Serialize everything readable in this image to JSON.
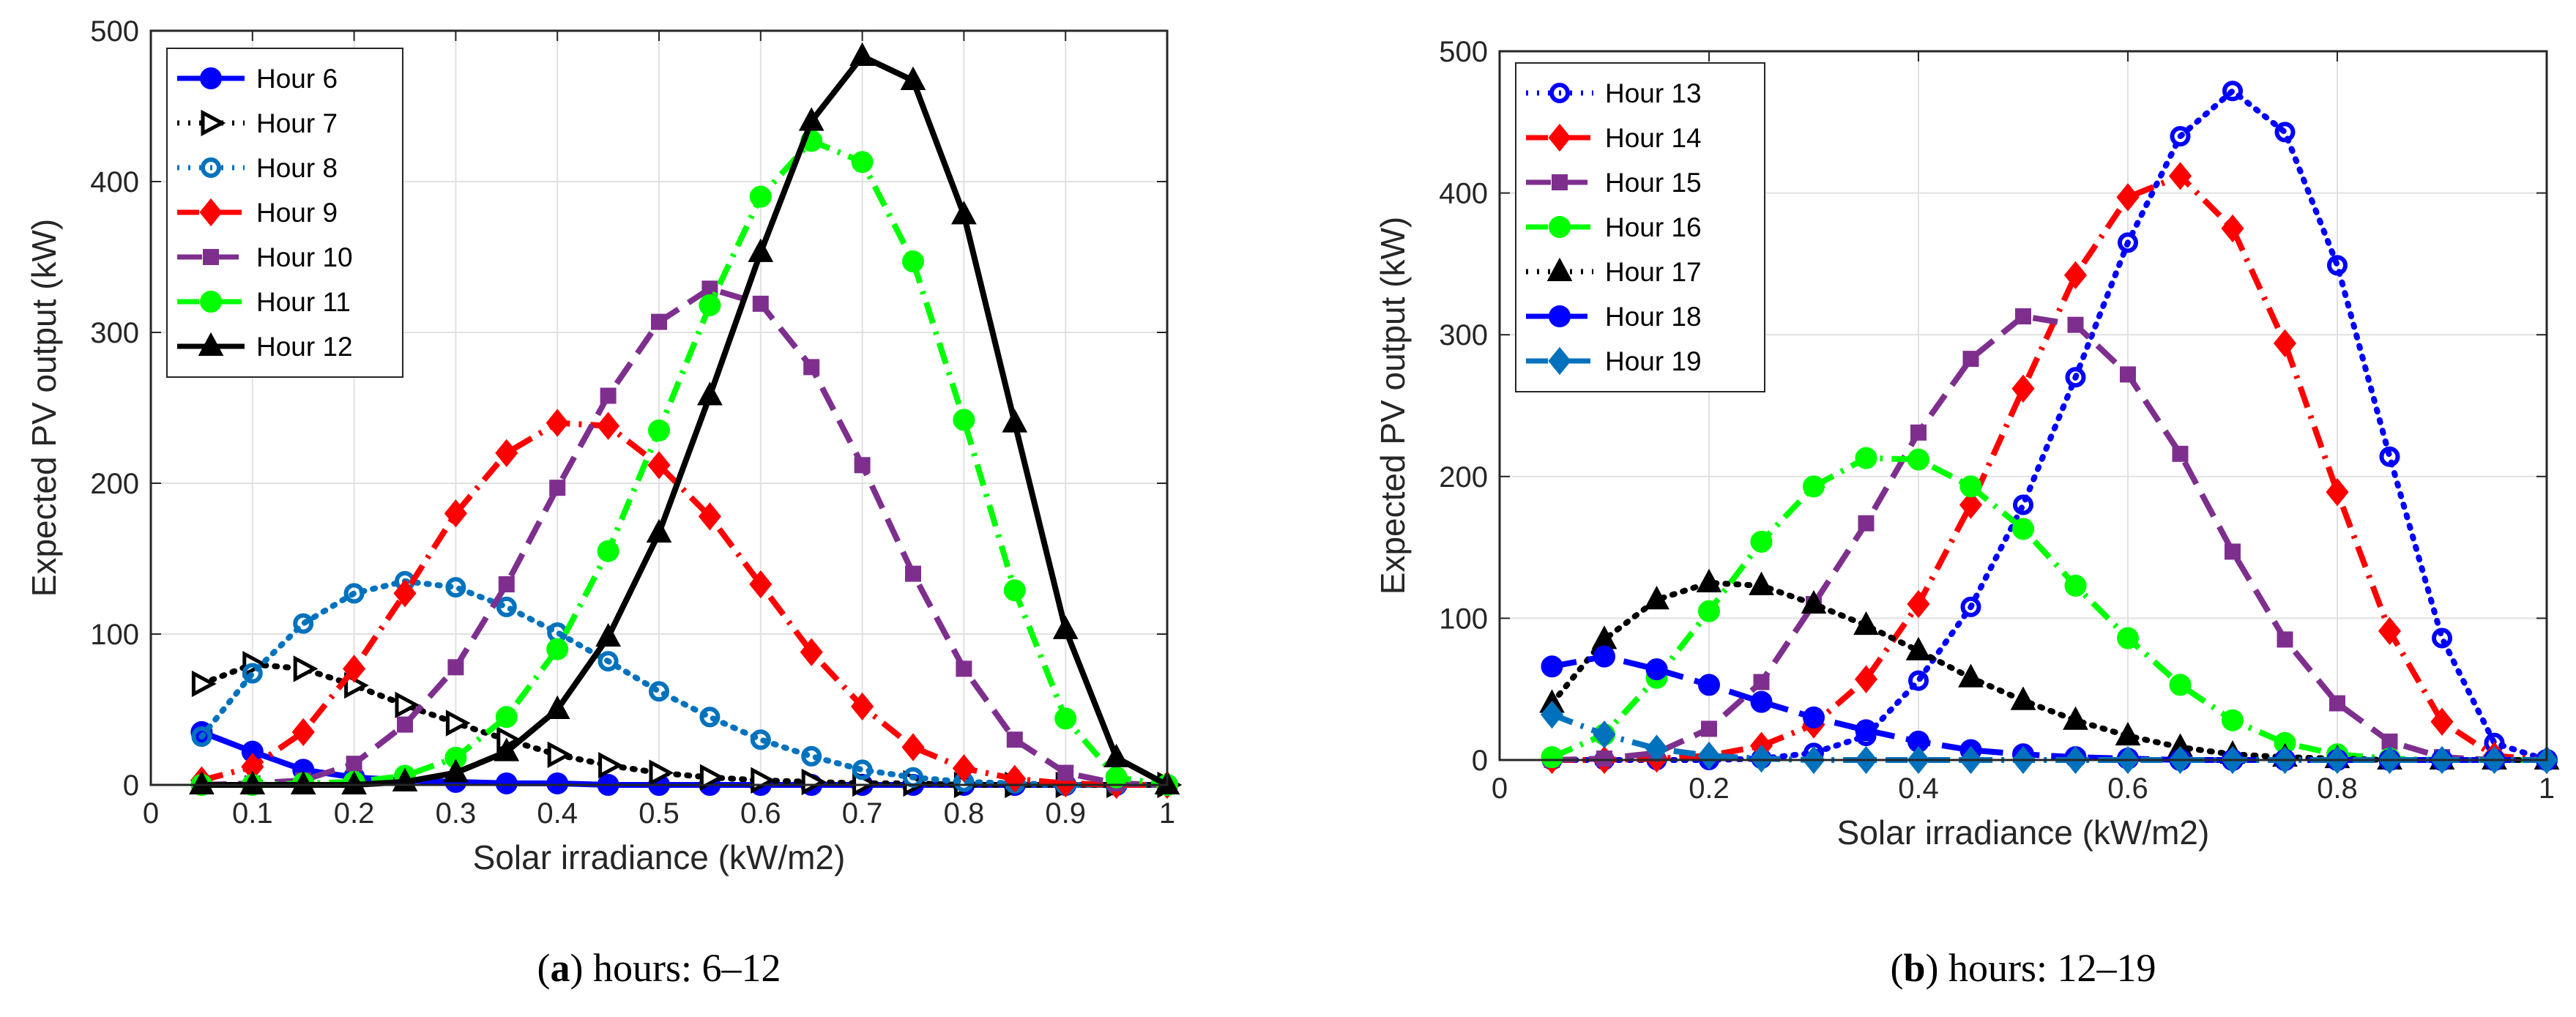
{
  "chart_data": [
    {
      "type": "line",
      "caption_letter": "a",
      "caption_text": " hours: 6–12",
      "xlabel": "Solar irradiance (kW/m2)",
      "ylabel": "Expected PV output (kW)",
      "xlim": [
        0,
        1
      ],
      "ylim": [
        0,
        500
      ],
      "xticks": [
        "0",
        "0.1",
        "0.2",
        "0.3",
        "0.4",
        "0.5",
        "0.6",
        "0.7",
        "0.8",
        "0.9",
        "1"
      ],
      "yticks": [
        "0",
        "100",
        "200",
        "300",
        "400",
        "500"
      ],
      "grid": true,
      "legend_position": "top-left",
      "x": [
        0.05,
        0.1,
        0.15,
        0.2,
        0.25,
        0.3,
        0.35,
        0.4,
        0.45,
        0.5,
        0.55,
        0.6,
        0.65,
        0.7,
        0.75,
        0.8,
        0.85,
        0.9,
        0.95,
        1.0
      ],
      "series": [
        {
          "name": "Hour 6",
          "color": "#0000ff",
          "dash": "solid",
          "marker": "circle",
          "values": [
            35,
            22,
            10,
            5,
            3,
            2,
            1,
            1,
            0,
            0,
            0,
            0,
            0,
            0,
            0,
            0,
            0,
            0,
            0,
            0
          ]
        },
        {
          "name": "Hour 7",
          "color": "#000000",
          "dash": "dot",
          "marker": "triangle-right",
          "values": [
            67,
            80,
            77,
            66,
            53,
            41,
            30,
            20,
            13,
            8,
            5,
            3,
            2,
            1,
            1,
            0,
            0,
            0,
            0,
            0
          ]
        },
        {
          "name": "Hour 8",
          "color": "#0072bd",
          "dash": "dot",
          "marker": "circle-open",
          "values": [
            32,
            74,
            107,
            127,
            135,
            131,
            118,
            101,
            82,
            62,
            45,
            30,
            19,
            10,
            5,
            2,
            1,
            0,
            0,
            0
          ]
        },
        {
          "name": "Hour 9",
          "color": "#ff0000",
          "dash": "dashdot",
          "marker": "diamond",
          "values": [
            3,
            12,
            35,
            77,
            127,
            180,
            220,
            240,
            238,
            212,
            178,
            133,
            88,
            52,
            25,
            11,
            4,
            1,
            0,
            0
          ]
        },
        {
          "name": "Hour 10",
          "color": "#7e2f8e",
          "dash": "dash",
          "marker": "square",
          "values": [
            0,
            1,
            3,
            14,
            40,
            78,
            133,
            197,
            258,
            307,
            329,
            319,
            277,
            212,
            140,
            77,
            30,
            8,
            1,
            0
          ]
        },
        {
          "name": "Hour 11",
          "color": "#00ff00",
          "dash": "dashdot",
          "marker": "circle",
          "values": [
            0,
            0,
            1,
            2,
            6,
            18,
            45,
            90,
            155,
            235,
            318,
            390,
            427,
            413,
            347,
            242,
            129,
            44,
            5,
            0
          ]
        },
        {
          "name": "Hour 12",
          "color": "#000000",
          "dash": "solid",
          "marker": "triangle-up",
          "values": [
            0,
            0,
            0,
            0,
            2,
            8,
            22,
            50,
            98,
            167,
            258,
            353,
            440,
            483,
            467,
            378,
            240,
            103,
            18,
            0
          ]
        }
      ]
    },
    {
      "type": "line",
      "caption_letter": "b",
      "caption_text": " hours: 12–19",
      "xlabel": "Solar irradiance (kW/m2)",
      "ylabel": "Expected PV output (kW)",
      "xlim": [
        0,
        1
      ],
      "ylim": [
        0,
        500
      ],
      "xticks": [
        "0",
        "0.2",
        "0.4",
        "0.6",
        "0.8",
        "1"
      ],
      "yticks": [
        "0",
        "100",
        "200",
        "300",
        "400",
        "500"
      ],
      "grid": true,
      "legend_position": "top-left",
      "x": [
        0.05,
        0.1,
        0.15,
        0.2,
        0.25,
        0.3,
        0.35,
        0.4,
        0.45,
        0.5,
        0.55,
        0.6,
        0.65,
        0.7,
        0.75,
        0.8,
        0.85,
        0.9,
        0.95,
        1.0
      ],
      "series": [
        {
          "name": "Hour 13",
          "color": "#0000ff",
          "dash": "dot",
          "marker": "circle-open",
          "values": [
            0,
            0,
            0,
            0,
            1,
            5,
            17,
            56,
            108,
            180,
            270,
            365,
            440,
            472,
            443,
            349,
            214,
            86,
            12,
            0
          ]
        },
        {
          "name": "Hour 14",
          "color": "#ff0000",
          "dash": "dashdot",
          "marker": "diamond",
          "values": [
            0,
            0,
            1,
            3,
            10,
            25,
            57,
            110,
            180,
            262,
            342,
            397,
            412,
            375,
            294,
            189,
            91,
            27,
            3,
            0
          ]
        },
        {
          "name": "Hour 15",
          "color": "#7e2f8e",
          "dash": "dash",
          "marker": "square",
          "values": [
            0,
            1,
            5,
            22,
            55,
            110,
            167,
            231,
            283,
            313,
            307,
            272,
            216,
            147,
            85,
            40,
            13,
            2,
            0,
            0
          ]
        },
        {
          "name": "Hour 16",
          "color": "#00ff00",
          "dash": "dashdot",
          "marker": "circle",
          "values": [
            2,
            18,
            58,
            105,
            154,
            193,
            213,
            212,
            193,
            163,
            123,
            86,
            53,
            28,
            12,
            4,
            1,
            0,
            0,
            0
          ]
        },
        {
          "name": "Hour 17",
          "color": "#000000",
          "dash": "dot",
          "marker": "triangle-up",
          "values": [
            40,
            85,
            113,
            125,
            123,
            110,
            95,
            77,
            58,
            42,
            28,
            17,
            9,
            4,
            2,
            1,
            0,
            0,
            0,
            0
          ]
        },
        {
          "name": "Hour 18",
          "color": "#0000ff",
          "dash": "dash",
          "marker": "circle",
          "values": [
            66,
            73,
            64,
            53,
            41,
            30,
            21,
            13,
            7,
            4,
            2,
            1,
            0,
            0,
            0,
            0,
            0,
            0,
            0,
            0
          ]
        },
        {
          "name": "Hour 19",
          "color": "#0072bd",
          "dash": "dashdot",
          "marker": "diamond",
          "values": [
            32,
            18,
            8,
            3,
            1,
            0,
            0,
            0,
            0,
            0,
            0,
            0,
            0,
            0,
            0,
            0,
            0,
            0,
            0,
            0
          ]
        }
      ]
    }
  ]
}
